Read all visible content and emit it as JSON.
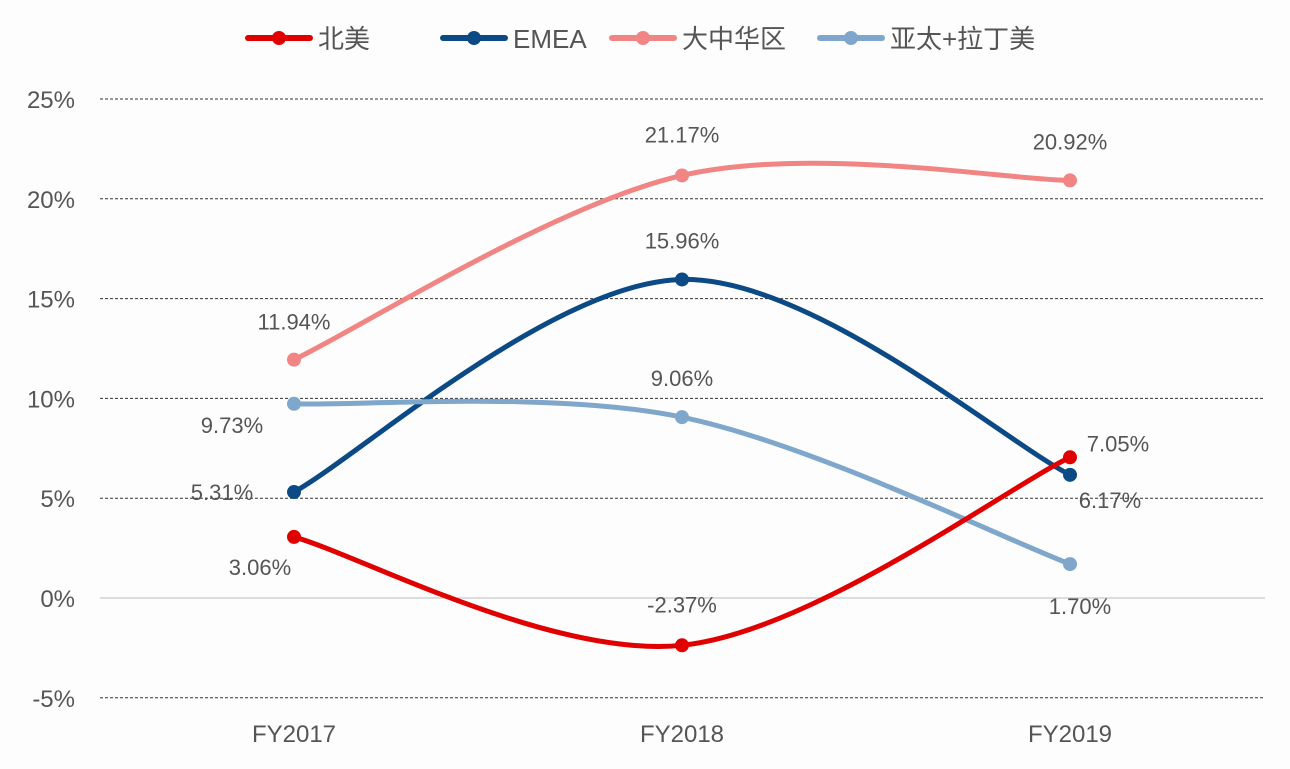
{
  "chart_data": {
    "type": "line",
    "smooth": true,
    "categories": [
      "FY2017",
      "FY2018",
      "FY2019"
    ],
    "ylim": [
      -5,
      25
    ],
    "yticks": [
      "-5%",
      "0%",
      "5%",
      "10%",
      "15%",
      "20%",
      "25%"
    ],
    "ytick_values": [
      -5,
      0,
      5,
      10,
      15,
      20,
      25
    ],
    "grid": "horizontal dashed",
    "legend_position": "top",
    "series": [
      {
        "name": "北美",
        "color": "#e00000",
        "values": [
          3.06,
          -2.37,
          7.05
        ],
        "labels": [
          "3.06%",
          "-2.37%",
          "7.05%"
        ]
      },
      {
        "name": "EMEA",
        "color": "#0b4a85",
        "values": [
          5.31,
          15.96,
          6.17
        ],
        "labels": [
          "5.31%",
          "15.96%",
          "6.17%"
        ]
      },
      {
        "name": "大中华区",
        "color": "#f08584",
        "values": [
          11.94,
          21.17,
          20.92
        ],
        "labels": [
          "11.94%",
          "21.17%",
          "20.92%"
        ]
      },
      {
        "name": "亚太+拉丁美",
        "color": "#7fa6cb",
        "values": [
          9.73,
          9.06,
          1.7
        ],
        "labels": [
          "9.73%",
          "9.06%",
          "1.70%"
        ]
      }
    ]
  }
}
